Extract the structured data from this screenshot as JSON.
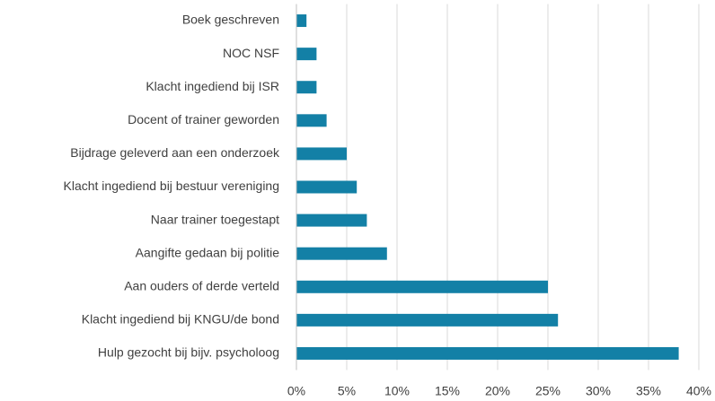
{
  "chart_data": {
    "type": "bar",
    "orientation": "horizontal",
    "categories": [
      "Boek geschreven",
      "NOC NSF",
      "Klacht ingediend bij ISR",
      "Docent of trainer geworden",
      "Bijdrage geleverd aan een onderzoek",
      "Klacht ingediend bij bestuur vereniging",
      "Naar trainer toegestapt",
      "Aangifte gedaan bij politie",
      "Aan ouders of derde verteld",
      "Klacht ingediend bij KNGU/de bond",
      "Hulp gezocht bij bijv. psycholoog"
    ],
    "values": [
      1,
      2,
      2,
      3,
      5,
      6,
      7,
      9,
      25,
      26,
      38
    ],
    "color": "#1380a6",
    "xlim": [
      0,
      40
    ],
    "xticks": [
      {
        "value": 0,
        "label": "0%"
      },
      {
        "value": 5,
        "label": "5%"
      },
      {
        "value": 10,
        "label": "10%"
      },
      {
        "value": 15,
        "label": "15%"
      },
      {
        "value": 20,
        "label": "20%"
      },
      {
        "value": 25,
        "label": "25%"
      },
      {
        "value": 30,
        "label": "30%"
      },
      {
        "value": 35,
        "label": "35%"
      },
      {
        "value": 40,
        "label": "40%"
      }
    ],
    "grid": true
  }
}
